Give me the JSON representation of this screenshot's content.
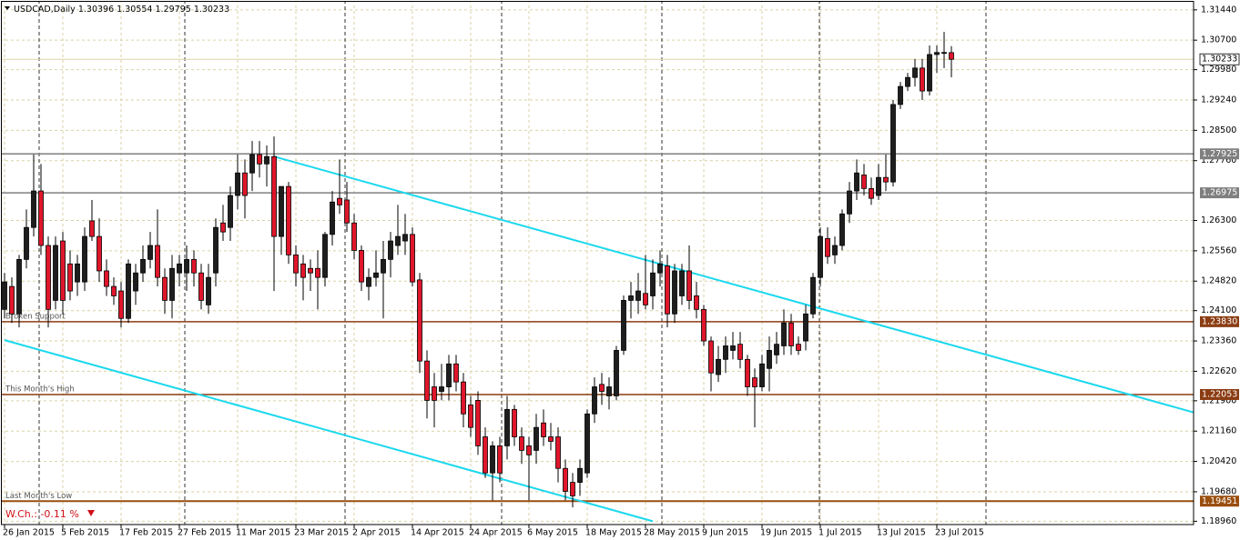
{
  "chart_data": {
    "type": "candlestick",
    "title": "USDCAD,Daily",
    "weekly_change": "W.Ch.: -0.11 %",
    "up_color": "#1e1e1e",
    "down_color": "#e0162b",
    "wick_color": "#000000",
    "grid": true,
    "grid_color": "#d9d2a6",
    "current_price_color": "#ddd6a8",
    "categories": [
      "26 Jan 2015",
      null,
      null,
      null,
      null,
      null,
      null,
      null,
      "5 Feb 2015",
      null,
      null,
      null,
      null,
      null,
      null,
      null,
      "17 Feb 2015",
      null,
      null,
      null,
      null,
      null,
      null,
      null,
      "27 Feb 2015",
      null,
      null,
      null,
      null,
      null,
      null,
      null,
      "11 Mar 2015",
      null,
      null,
      null,
      null,
      null,
      null,
      null,
      "23 Mar 2015",
      null,
      null,
      null,
      null,
      null,
      null,
      null,
      "2 Apr 2015",
      null,
      null,
      null,
      null,
      null,
      null,
      null,
      "14 Apr 2015",
      null,
      null,
      null,
      null,
      null,
      null,
      null,
      "24 Apr 2015",
      null,
      null,
      null,
      null,
      null,
      null,
      null,
      "6 May 2015",
      null,
      null,
      null,
      null,
      null,
      null,
      null,
      "18 May 2015",
      null,
      null,
      null,
      null,
      null,
      null,
      null,
      "28 May 2015",
      null,
      null,
      null,
      null,
      null,
      null,
      null,
      "9 Jun 2015",
      null,
      null,
      null,
      null,
      null,
      null,
      null,
      "19 Jun 2015",
      null,
      null,
      null,
      null,
      null,
      null,
      null,
      "1 Jul 2015",
      null,
      null,
      null,
      null,
      null,
      null,
      null,
      "13 Jul 2015",
      null,
      null,
      null,
      null,
      null,
      null,
      null,
      "23 Jul 2015",
      null,
      null
    ],
    "open": [
      1.2413,
      1.2469,
      1.2402,
      1.2535,
      1.2613,
      1.2702,
      1.2569,
      1.2435,
      1.258,
      1.2524,
      1.248,
      1.248,
      1.2629,
      1.2591,
      1.2507,
      1.2469,
      1.2458,
      1.2391,
      1.2458,
      1.2502,
      1.2535,
      1.2569,
      1.2491,
      1.2435,
      1.2502,
      1.2502,
      1.2535,
      1.2502,
      1.2424,
      1.2502,
      1.2624,
      1.2613,
      1.2691,
      1.2746,
      1.2746,
      1.2791,
      1.2768,
      1.2786,
      1.2591,
      1.2713,
      1.2546,
      1.2524,
      1.2513,
      1.2513,
      1.2491,
      1.2596,
      1.2684,
      1.268,
      1.2624,
      1.2557,
      1.2469,
      1.2491,
      1.2502,
      1.2535,
      1.2569,
      1.258,
      1.2596,
      1.2485,
      1.2287,
      1.2224,
      1.2213,
      1.2224,
      1.228,
      1.2236,
      1.218,
      1.2191,
      1.2102,
      1.2014,
      1.208,
      1.208,
      1.2169,
      1.2102,
      1.208,
      1.2069,
      1.2136,
      1.2102,
      1.2102,
      1.2025,
      1.1991,
      1.1991,
      1.2014,
      1.2158,
      1.223,
      1.2202,
      1.2202,
      1.2313,
      1.2435,
      1.2435,
      1.2452,
      1.2446,
      1.2502,
      1.2519,
      1.2402,
      1.2446,
      1.2507,
      1.2446,
      1.2413,
      1.2336,
      1.2254,
      1.2291,
      1.2313,
      1.2328,
      1.2291,
      1.2246,
      1.2224,
      1.2269,
      1.2302,
      1.2324,
      1.238,
      1.2328,
      1.2336,
      1.2402,
      1.2491,
      1.2586,
      1.2546,
      1.2569,
      1.2646,
      1.2702,
      1.2741,
      1.2708,
      1.2691,
      1.2735,
      1.2724,
      1.2913,
      1.2957,
      1.2979,
      1.3002,
      1.2946,
      1.3035,
      1.304,
      1.30396
    ],
    "high": [
      1.2502,
      1.2491,
      1.2546,
      1.2657,
      1.2791,
      1.2768,
      1.2591,
      1.2591,
      1.2602,
      1.2557,
      1.2546,
      1.2613,
      1.268,
      1.2635,
      1.2535,
      1.2491,
      1.248,
      1.2535,
      1.2524,
      1.2569,
      1.2602,
      1.2657,
      1.2513,
      1.2546,
      1.2546,
      1.2569,
      1.2557,
      1.2524,
      1.2524,
      1.2635,
      1.2668,
      1.2713,
      1.2791,
      1.2779,
      1.2824,
      1.2824,
      1.2813,
      1.2835,
      1.2713,
      1.2724,
      1.2569,
      1.2546,
      1.2535,
      1.2557,
      1.2602,
      1.2702,
      1.2779,
      1.2724,
      1.2646,
      1.2569,
      1.2513,
      1.2557,
      1.258,
      1.2602,
      1.2668,
      1.2646,
      1.2613,
      1.2502,
      1.2313,
      1.2258,
      1.228,
      1.2302,
      1.2302,
      1.2258,
      1.2202,
      1.2213,
      1.2125,
      1.2091,
      1.2102,
      1.2202,
      1.218,
      1.2125,
      1.2102,
      1.2158,
      1.2169,
      1.2136,
      1.2125,
      1.2047,
      1.2014,
      1.2047,
      1.2169,
      1.2247,
      1.2258,
      1.2247,
      1.2324,
      1.2447,
      1.248,
      1.2502,
      1.2546,
      1.2535,
      1.2557,
      1.2546,
      1.2524,
      1.2524,
      1.2569,
      1.248,
      1.2424,
      1.2347,
      1.2324,
      1.2347,
      1.2358,
      1.2358,
      1.2302,
      1.2269,
      1.2302,
      1.2347,
      1.2358,
      1.2413,
      1.2402,
      1.2347,
      1.2424,
      1.2502,
      1.2613,
      1.2613,
      1.2591,
      1.2657,
      1.2724,
      1.2779,
      1.2768,
      1.2735,
      1.2768,
      1.2791,
      1.2924,
      1.2968,
      1.299,
      1.3024,
      1.3024,
      1.3057,
      1.3057,
      1.309,
      1.30554
    ],
    "low": [
      1.2391,
      1.238,
      1.2369,
      1.2513,
      1.2591,
      1.2546,
      1.2369,
      1.2413,
      1.2402,
      1.2435,
      1.2446,
      1.2458,
      1.258,
      1.248,
      1.2446,
      1.2424,
      1.2369,
      1.238,
      1.2424,
      1.248,
      1.2513,
      1.2469,
      1.2402,
      1.2391,
      1.2469,
      1.2458,
      1.2469,
      1.2413,
      1.2402,
      1.2469,
      1.258,
      1.258,
      1.2657,
      1.2635,
      1.2702,
      1.2735,
      1.2713,
      1.2458,
      1.2546,
      1.2524,
      1.2469,
      1.2435,
      1.2458,
      1.2413,
      1.2469,
      1.2569,
      1.2646,
      1.2602,
      1.2535,
      1.2458,
      1.2435,
      1.2469,
      1.2391,
      1.2491,
      1.2546,
      1.2546,
      1.2469,
      1.2258,
      1.2147,
      1.2125,
      1.2191,
      1.2191,
      1.2213,
      1.2125,
      1.2102,
      1.2058,
      1.2002,
      1.1947,
      1.1991,
      1.2047,
      1.208,
      1.2036,
      1.1947,
      1.2036,
      1.208,
      1.2069,
      1.1991,
      1.1947,
      1.193,
      1.1958,
      1.2002,
      1.2136,
      1.218,
      1.2169,
      1.2191,
      1.2302,
      1.2391,
      1.2402,
      1.2413,
      1.2413,
      1.2469,
      1.2369,
      1.238,
      1.2424,
      1.2413,
      1.2391,
      1.2324,
      1.2213,
      1.2236,
      1.2258,
      1.2291,
      1.2269,
      1.2202,
      1.2125,
      1.2213,
      1.2213,
      1.228,
      1.2302,
      1.2302,
      1.2302,
      1.2313,
      1.2391,
      1.2469,
      1.2524,
      1.2524,
      1.2557,
      1.2624,
      1.268,
      1.2691,
      1.2668,
      1.268,
      1.2702,
      1.2713,
      1.2902,
      1.2946,
      1.2957,
      1.2924,
      1.2935,
      1.299,
      1.3002,
      1.29795
    ],
    "close": [
      1.248,
      1.2402,
      1.2535,
      1.2613,
      1.2702,
      1.2569,
      1.2413,
      1.2569,
      1.2435,
      1.2458,
      1.2524,
      1.2591,
      1.2591,
      1.2507,
      1.2469,
      1.2446,
      1.2391,
      1.2524,
      1.2502,
      1.2535,
      1.2569,
      1.2491,
      1.2435,
      1.2513,
      1.2524,
      1.2535,
      1.2502,
      1.2435,
      1.2491,
      1.2613,
      1.2602,
      1.2691,
      1.2746,
      1.2691,
      1.2791,
      1.2768,
      1.2786,
      1.2591,
      1.2713,
      1.2546,
      1.2502,
      1.2491,
      1.2502,
      1.2491,
      1.2596,
      1.2675,
      1.2668,
      1.2624,
      1.2557,
      1.248,
      1.2491,
      1.2502,
      1.2535,
      1.258,
      1.2591,
      1.2596,
      1.248,
      1.2287,
      1.2191,
      1.2191,
      1.2224,
      1.228,
      1.2236,
      1.2158,
      1.2125,
      1.208,
      1.2014,
      1.208,
      1.2014,
      1.2169,
      1.2102,
      1.2069,
      1.2058,
      1.2125,
      1.2102,
      1.2091,
      1.2025,
      1.1969,
      1.1958,
      1.2025,
      1.2158,
      1.2224,
      1.2213,
      1.2224,
      1.2313,
      1.2435,
      1.2446,
      1.2458,
      1.2424,
      1.2502,
      1.2524,
      1.2402,
      1.2507,
      1.2507,
      1.2435,
      1.2413,
      1.2336,
      1.2258,
      1.2291,
      1.2324,
      1.2324,
      1.2291,
      1.2224,
      1.2224,
      1.228,
      1.2313,
      1.2328,
      1.238,
      1.2324,
      1.2313,
      1.2402,
      1.2491,
      1.2591,
      1.2542,
      1.2569,
      1.2646,
      1.2702,
      1.2746,
      1.2708,
      1.2684,
      1.2735,
      1.2724,
      1.2913,
      1.2957,
      1.2979,
      1.3002,
      1.2946,
      1.3035,
      1.304,
      1.304,
      1.30233
    ],
    "ylim": [
      1.1888,
      1.3168
    ],
    "yticks": [
      {
        "value": 1.3144,
        "label": "1.31440"
      },
      {
        "value": 1.307,
        "label": "1.30700"
      },
      {
        "value": 1.2998,
        "label": "1.29980"
      },
      {
        "value": 1.2924,
        "label": "1.29240"
      },
      {
        "value": 1.285,
        "label": "1.28500"
      },
      {
        "value": 1.2776,
        "label": "1.27760"
      },
      {
        "value": 1.263,
        "label": "1.26300"
      },
      {
        "value": 1.2556,
        "label": "1.25560"
      },
      {
        "value": 1.2482,
        "label": "1.24820"
      },
      {
        "value": 1.241,
        "label": "1.24100"
      },
      {
        "value": 1.2336,
        "label": "1.23360"
      },
      {
        "value": 1.2262,
        "label": "1.22620"
      },
      {
        "value": 1.219,
        "label": "1.21900"
      },
      {
        "value": 1.2116,
        "label": "1.21160"
      },
      {
        "value": 1.2042,
        "label": "1.20420"
      },
      {
        "value": 1.1968,
        "label": "1.19680"
      },
      {
        "value": 1.1896,
        "label": "1.18960"
      }
    ],
    "levels": [
      {
        "price": 1.27925,
        "color": "#7f7f7f"
      },
      {
        "price": 1.26975,
        "color": "#7f7f7f"
      },
      {
        "name": "Broken Support",
        "price": {
          "value": 1.2383,
          "label": "1.23830"
        },
        "color": "#8b3c12"
      },
      {
        "name": "This Month's High",
        "price": 1.22053,
        "color": "#8b3c12"
      },
      {
        "name": "Last Month's Low",
        "price": 1.19451,
        "color": "#9a4e0e"
      }
    ],
    "trendlines": [
      {
        "x": [
          37,
          164
        ],
        "y": [
          1.2786,
          1.2158
        ],
        "color": "#1ad8ee"
      },
      {
        "x": [
          0,
          89
        ],
        "y": [
          1.2338,
          1.1896
        ],
        "color": "#1ad8ee"
      }
    ]
  }
}
